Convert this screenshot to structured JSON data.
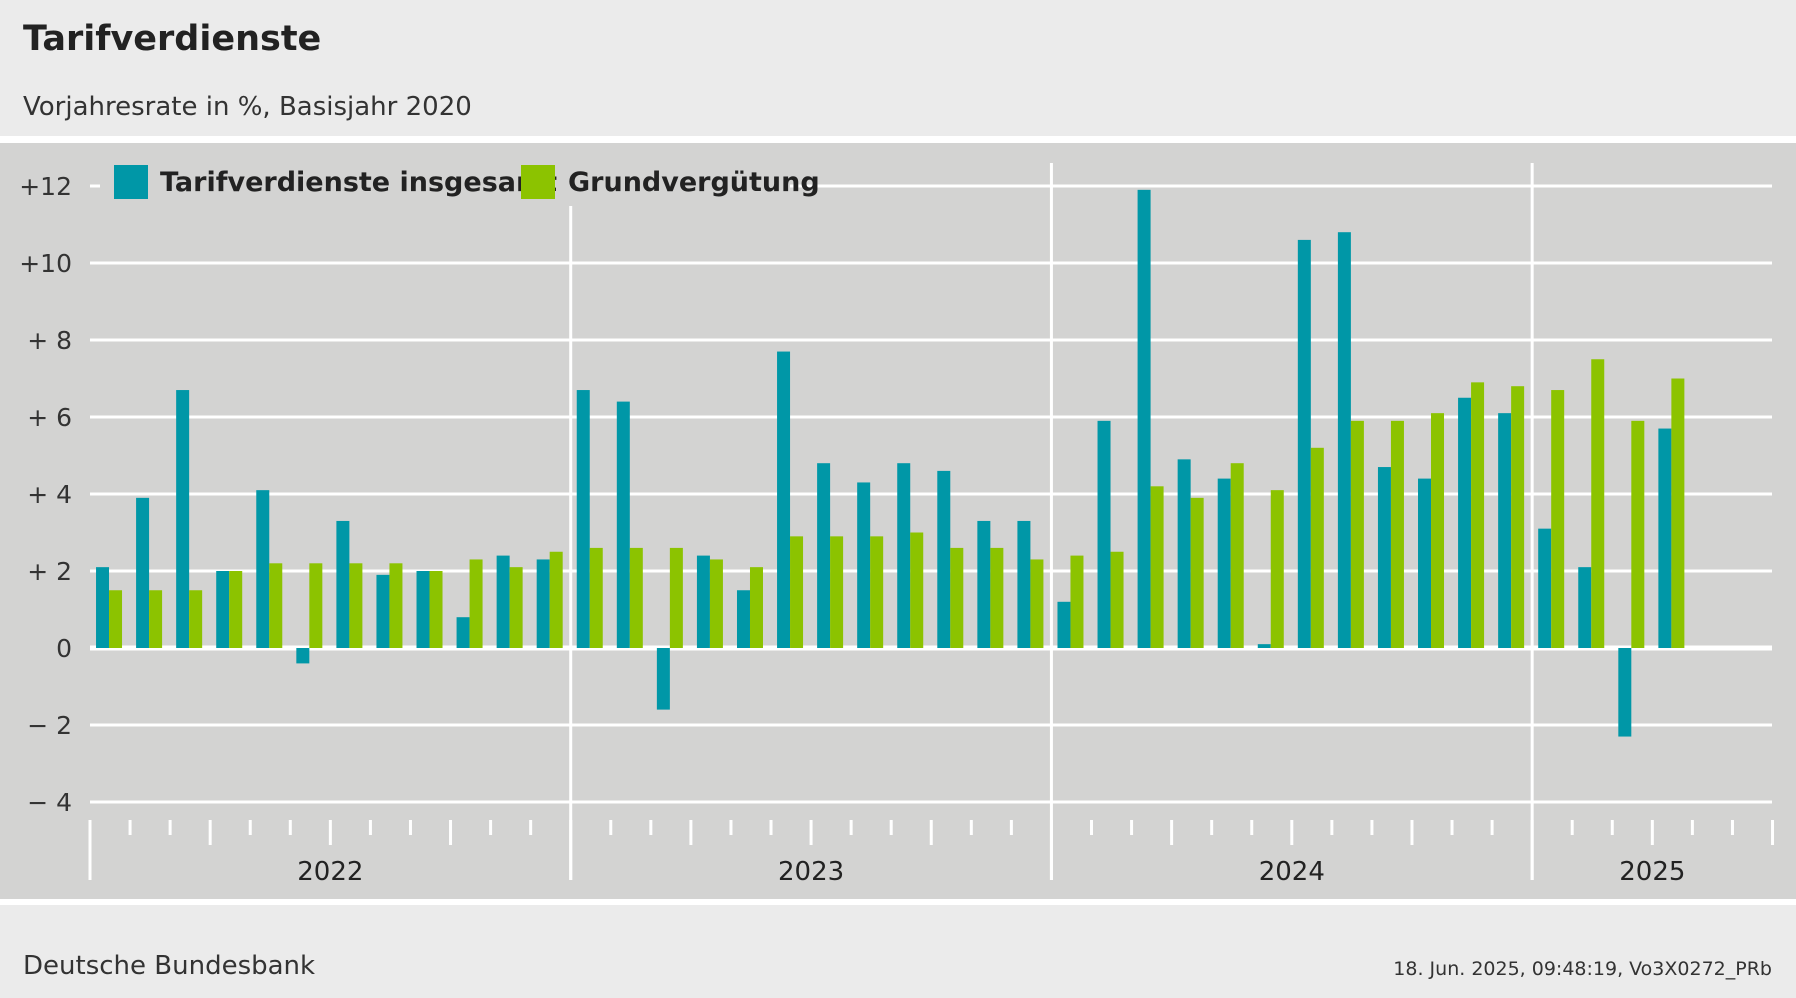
{
  "header": {
    "title": "Tarifverdienste",
    "subtitle": "Vorjahresrate in %, Basisjahr 2020"
  },
  "footer": {
    "source": "Deutsche Bundesbank",
    "timestamp": "18. Jun. 2025, 09:48:19, Vo3X0272_PRb"
  },
  "colors": {
    "series1": "#0097a7",
    "series2": "#8cc300",
    "plot_bg": "#d3d3d2",
    "page_bg": "#ebebeb",
    "grid": "#ffffff"
  },
  "chart_data": {
    "type": "bar",
    "frequency": "monthly",
    "period_start": "2022-01",
    "period_end": "2025-04",
    "ylim": [
      -4,
      12
    ],
    "y_ticks": [
      12,
      10,
      8,
      6,
      4,
      2,
      0,
      -2,
      -4
    ],
    "y_tick_labels": [
      "+12",
      "+10",
      "+ 8",
      "+ 6",
      "+ 4",
      "+ 2",
      "0",
      "− 2",
      "− 4"
    ],
    "x_axis_months": 42,
    "years": [
      "2022",
      "2023",
      "2024",
      "2025"
    ],
    "legend_position": "top-left",
    "grid": true,
    "series": [
      {
        "name": "Tarifverdienste insgesamt",
        "color": "#0097a7",
        "values": [
          2.1,
          3.9,
          6.7,
          2.0,
          4.1,
          -0.4,
          3.3,
          1.9,
          2.0,
          0.8,
          2.4,
          2.3,
          6.7,
          6.4,
          -1.6,
          2.4,
          1.5,
          7.7,
          4.8,
          4.3,
          4.8,
          4.6,
          3.3,
          3.3,
          1.2,
          5.9,
          11.9,
          4.9,
          4.4,
          0.1,
          10.6,
          10.8,
          4.7,
          4.4,
          6.5,
          6.1,
          3.1,
          2.1,
          -2.3,
          5.7
        ]
      },
      {
        "name": "Grundvergütung",
        "color": "#8cc300",
        "values": [
          1.5,
          1.5,
          1.5,
          2.0,
          2.2,
          2.2,
          2.2,
          2.2,
          2.0,
          2.3,
          2.1,
          2.5,
          2.6,
          2.6,
          2.6,
          2.3,
          2.1,
          2.9,
          2.9,
          2.9,
          3.0,
          2.6,
          2.6,
          2.3,
          2.4,
          2.5,
          4.2,
          3.9,
          4.8,
          4.1,
          5.2,
          5.9,
          5.9,
          6.1,
          6.9,
          6.8,
          6.7,
          7.5,
          5.9,
          7.0
        ]
      }
    ]
  }
}
